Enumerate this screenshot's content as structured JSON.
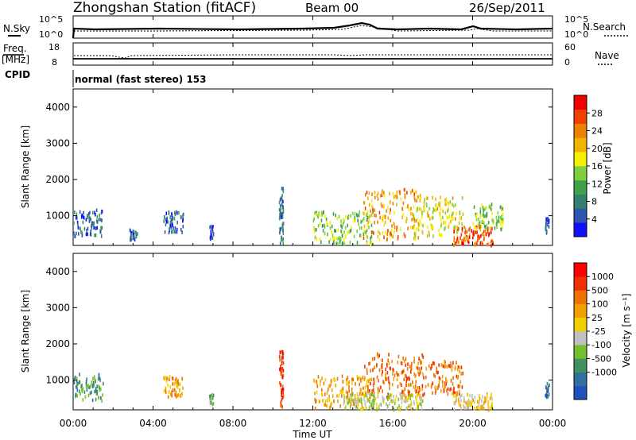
{
  "header": {
    "station_title": "Zhongshan Station (fitACF)",
    "beam": "Beam 00",
    "date": "26/Sep/2011"
  },
  "noise_panel": {
    "left_label": "N.Sky",
    "right_label": "N.Search",
    "tick_top": "10^5",
    "tick_bottom": "10^0"
  },
  "freq_panel": {
    "left_label_top": "Freq.",
    "left_label_bottom": "[MHz]",
    "right_label": "Nave",
    "left_tick_top": "18",
    "left_tick_bottom": "8",
    "right_tick_top": "60",
    "right_tick_bottom": "0"
  },
  "cpid": {
    "label": "CPID",
    "value": "normal (fast stereo) 153"
  },
  "colors": {
    "power": [
      "#1010ff",
      "#2c56b0",
      "#34806c",
      "#3ea24c",
      "#7cd23c",
      "#f5f000",
      "#f0b400",
      "#f08000",
      "#f04000",
      "#f00000"
    ],
    "velocity": [
      "#2050c0",
      "#3070a0",
      "#409060",
      "#70c030",
      "#c0c0c0",
      "#f0d000",
      "#f0a000",
      "#f07000",
      "#f03000",
      "#ff0000"
    ],
    "ground_scatter": "#c0c0c0"
  },
  "chart_data": [
    {
      "type": "heatmap",
      "name_ref": "power",
      "ylabel": "Slant Range [km]",
      "xlabel": "",
      "x_ticks": [
        "00:00",
        "04:00",
        "08:00",
        "12:00",
        "16:00",
        "20:00",
        "00:00"
      ],
      "y_ticks": [
        "1000",
        "2000",
        "3000",
        "4000"
      ],
      "ylim": [
        180,
        4500
      ],
      "xlim_hours": [
        0,
        24
      ],
      "colorbar": {
        "label": "Power [dB]",
        "range": [
          0,
          32
        ],
        "tick_labels": [
          "4",
          "8",
          "12",
          "16",
          "20",
          "24",
          "28"
        ]
      },
      "regions": [
        {
          "t0": 0.0,
          "t1": 1.5,
          "r0": 400,
          "r1": 1150,
          "value": 6
        },
        {
          "t0": 2.8,
          "t1": 3.2,
          "r0": 300,
          "r1": 600,
          "value": 7
        },
        {
          "t0": 4.5,
          "t1": 5.5,
          "r0": 500,
          "r1": 1100,
          "value": 6
        },
        {
          "t0": 6.8,
          "t1": 7.0,
          "r0": 300,
          "r1": 700,
          "value": 5
        },
        {
          "t0": 10.3,
          "t1": 10.5,
          "r0": 200,
          "r1": 1800,
          "value": 7
        },
        {
          "t0": 12.0,
          "t1": 15.0,
          "r0": 200,
          "r1": 1100,
          "value": 14
        },
        {
          "t0": 14.5,
          "t1": 17.5,
          "r0": 300,
          "r1": 1700,
          "value": 22
        },
        {
          "t0": 17.0,
          "t1": 19.5,
          "r0": 400,
          "r1": 1500,
          "value": 18
        },
        {
          "t0": 19.0,
          "t1": 21.0,
          "r0": 150,
          "r1": 700,
          "value": 26
        },
        {
          "t0": 20.0,
          "t1": 21.5,
          "r0": 600,
          "r1": 1300,
          "value": 14
        },
        {
          "t0": 23.6,
          "t1": 23.8,
          "r0": 500,
          "r1": 900,
          "value": 6
        }
      ]
    },
    {
      "type": "heatmap",
      "name_ref": "velocity",
      "ylabel": "Slant Range [km]",
      "xlabel": "Time UT",
      "x_ticks": [
        "00:00",
        "04:00",
        "08:00",
        "12:00",
        "16:00",
        "20:00",
        "00:00"
      ],
      "y_ticks": [
        "1000",
        "2000",
        "3000",
        "4000"
      ],
      "ylim": [
        180,
        4500
      ],
      "xlim_hours": [
        0,
        24
      ],
      "colorbar": {
        "label": "Velocity [m s⁻¹]",
        "tick_labels": [
          "1000",
          "500",
          "100",
          "25",
          "-25",
          "-100",
          "-500",
          "-1000"
        ]
      },
      "regions": [
        {
          "t0": 0.0,
          "t1": 1.5,
          "r0": 400,
          "r1": 1150,
          "value": 2
        },
        {
          "t0": 4.5,
          "t1": 5.5,
          "r0": 500,
          "r1": 1100,
          "value": 6
        },
        {
          "t0": 6.8,
          "t1": 7.0,
          "r0": 300,
          "r1": 600,
          "value": 3
        },
        {
          "t0": 10.3,
          "t1": 10.5,
          "r0": 200,
          "r1": 1800,
          "value": 8
        },
        {
          "t0": 12.0,
          "t1": 15.0,
          "r0": 200,
          "r1": 1100,
          "value": 6
        },
        {
          "t0": 14.5,
          "t1": 17.5,
          "r0": 500,
          "r1": 1700,
          "value": 7
        },
        {
          "t0": 17.0,
          "t1": 19.5,
          "r0": 600,
          "r1": 1500,
          "value": 7
        },
        {
          "t0": 13.5,
          "t1": 17.5,
          "r0": 150,
          "r1": 600,
          "value": 4
        },
        {
          "t0": 19.0,
          "t1": 21.0,
          "r0": 150,
          "r1": 600,
          "value": 5
        },
        {
          "t0": 23.6,
          "t1": 23.8,
          "r0": 500,
          "r1": 900,
          "value": 1
        }
      ]
    }
  ]
}
